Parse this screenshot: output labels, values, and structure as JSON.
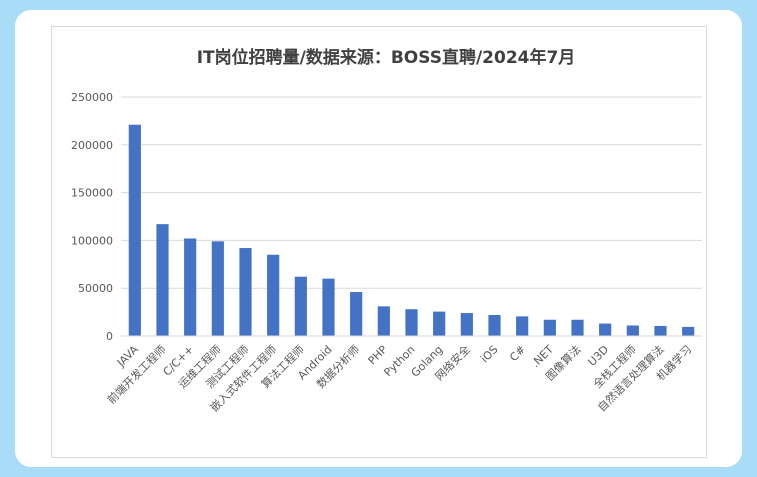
{
  "colors": {
    "background": "#a9dcf7",
    "bar": "#4472c4",
    "grid": "#d9d9d9",
    "text": "#595959"
  },
  "chart_data": {
    "type": "bar",
    "title": "IT岗位招聘量/数据来源：BOSS直聘/2024年7月",
    "xlabel": "",
    "ylabel": "",
    "ylim": [
      0,
      250000
    ],
    "yticks": [
      0,
      50000,
      100000,
      150000,
      200000,
      250000
    ],
    "ytick_labels": [
      "0",
      "50000",
      "100000",
      "150000",
      "200000",
      "250000"
    ],
    "grid": true,
    "legend": "none",
    "categories": [
      "JAVA",
      "前端开发工程师",
      "C/C++",
      "运维工程师",
      "测试工程师",
      "嵌入式软件工程师",
      "算法工程师",
      "Android",
      "数据分析师",
      "PHP",
      "Python",
      "Golang",
      "网络安全",
      "iOS",
      "C#",
      ".NET",
      "图像算法",
      "U3D",
      "全栈工程师",
      "自然语言处理算法",
      "机器学习"
    ],
    "values": [
      221000,
      117000,
      102000,
      99000,
      92000,
      85000,
      62000,
      60000,
      46000,
      31000,
      28000,
      25500,
      24000,
      22000,
      20500,
      17000,
      17000,
      13000,
      11000,
      10500,
      9500
    ]
  }
}
